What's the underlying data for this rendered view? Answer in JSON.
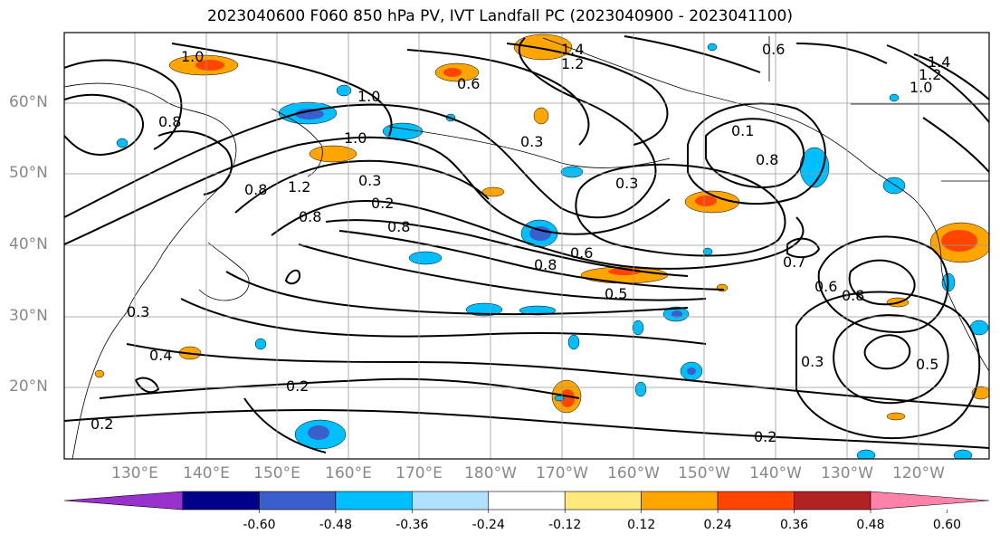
{
  "title": "2023040600 F060 850 hPa PV, IVT Landfall PC (2023040900 - 2023041100)",
  "lat_labels": [
    "60°N",
    "50°N",
    "40°N",
    "30°N",
    "20°N"
  ],
  "lon_labels": [
    "130°E",
    "140°E",
    "150°E",
    "160°E",
    "170°E",
    "180°W",
    "170°W",
    "160°W",
    "150°W",
    "140°W",
    "130°W",
    "120°W"
  ],
  "contour_labels": [
    "1.0",
    "0.6",
    "0.6",
    "1.4",
    "1.2",
    "1.0",
    "0.8",
    "0.3",
    "0.2",
    "0.8",
    "0.6",
    "0.8",
    "0.5",
    "0.1",
    "0.8",
    "0.3",
    "0.7",
    "0.6",
    "0.8",
    "0.3",
    "0.5",
    "0.2",
    "0.4",
    "0.2",
    "0.2",
    "0.3",
    "0.8",
    "1.0",
    "1.2",
    "0.8",
    "0.3",
    "1.4",
    "1.2",
    "1.0"
  ],
  "colorbar": {
    "ticks": [
      "-0.60",
      "-0.48",
      "-0.36",
      "-0.24",
      "-0.12",
      "0.12",
      "0.24",
      "0.36",
      "0.48",
      "0.60"
    ],
    "colors": [
      "#9932cc",
      "#00008b",
      "#3a5fcd",
      "#00bfff",
      "#b0e2ff",
      "#ffffff",
      "#ffe87c",
      "#ffa500",
      "#ff4500",
      "#b22222",
      "#ff82ab"
    ]
  },
  "colors": {
    "land_outline": "#000000",
    "grid": "#999999",
    "contour": "#000000",
    "tick_label": "#888888"
  }
}
